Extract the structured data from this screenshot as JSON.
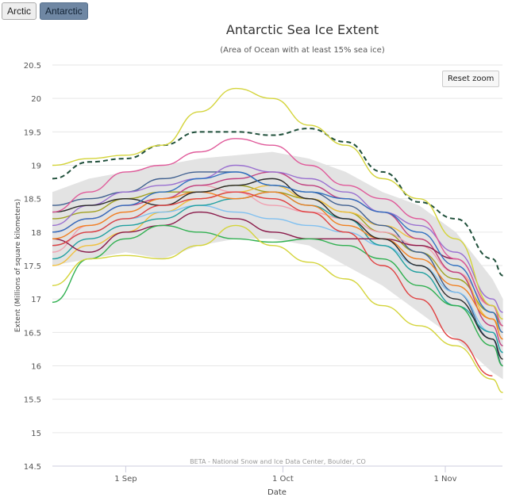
{
  "buttons": {
    "arctic": "Arctic",
    "antarctic": "Antarctic",
    "reset_zoom": "Reset zoom"
  },
  "chart_data": {
    "type": "line",
    "title": "Antarctic Sea Ice Extent",
    "subtitle": "(Area of Ocean with at least 15% sea ice)",
    "xlabel": "Date",
    "ylabel": "Extent (Millions of square kilometers)",
    "credits": "BETA - National Snow and Ice Data Center, Boulder, CO",
    "ylim": [
      14.5,
      20.5
    ],
    "yticks": [
      "20.5",
      "20",
      "19.5",
      "19",
      "18.5",
      "18",
      "17.5",
      "17",
      "16.5",
      "16",
      "15.5",
      "15",
      "14.5"
    ],
    "xticks": [
      {
        "label": "1 Sep",
        "day": 14
      },
      {
        "label": "1 Oct",
        "day": 44
      },
      {
        "label": "1 Nov",
        "day": 75
      }
    ],
    "x_unit": "days since 18 Aug",
    "x": [
      0,
      7,
      14,
      21,
      28,
      35,
      42,
      49,
      56,
      63,
      70,
      77,
      84,
      86
    ],
    "band": {
      "upper": [
        18.6,
        18.8,
        18.9,
        19.0,
        19.1,
        19.15,
        19.2,
        19.1,
        18.9,
        18.6,
        18.4,
        18.0,
        17.3,
        17.0
      ],
      "lower": [
        17.5,
        17.6,
        17.7,
        17.6,
        17.8,
        17.9,
        17.9,
        17.8,
        17.5,
        17.2,
        16.8,
        16.4,
        15.9,
        15.8
      ]
    },
    "series": [
      {
        "color": "#d4d43a",
        "values": [
          19.0,
          19.1,
          19.15,
          19.3,
          19.8,
          20.15,
          20.0,
          19.6,
          19.3,
          18.8,
          18.5,
          17.9,
          16.9,
          16.7
        ]
      },
      {
        "color": "#1f4f3a",
        "dash": true,
        "values": [
          18.8,
          19.05,
          19.1,
          19.3,
          19.5,
          19.5,
          19.45,
          19.55,
          19.35,
          18.9,
          18.45,
          18.2,
          17.6,
          17.35
        ]
      },
      {
        "color": "#d4d43a",
        "values": [
          17.2,
          17.6,
          17.65,
          17.6,
          17.8,
          18.1,
          17.8,
          17.55,
          17.3,
          16.9,
          16.6,
          16.3,
          15.8,
          15.6
        ]
      },
      {
        "color": "#e04040",
        "values": [
          17.8,
          18.0,
          18.2,
          18.4,
          18.5,
          18.6,
          18.5,
          18.3,
          18.0,
          17.5,
          17.0,
          16.4,
          15.85,
          null
        ]
      },
      {
        "color": "#e05a9a",
        "values": [
          18.3,
          18.6,
          18.9,
          19.0,
          19.2,
          19.4,
          19.3,
          19.0,
          18.7,
          18.5,
          18.2,
          17.6,
          16.9,
          16.6
        ]
      },
      {
        "color": "#3070c0",
        "values": [
          18.0,
          18.2,
          18.4,
          18.6,
          18.8,
          18.9,
          18.7,
          18.6,
          18.5,
          18.3,
          18.0,
          17.5,
          16.8,
          16.5
        ]
      },
      {
        "color": "#2a2a2a",
        "values": [
          18.3,
          18.4,
          18.5,
          18.4,
          18.6,
          18.7,
          18.8,
          18.5,
          18.2,
          17.9,
          17.5,
          17.0,
          16.4,
          16.1
        ]
      },
      {
        "color": "#f08020",
        "values": [
          17.9,
          18.1,
          18.3,
          18.5,
          18.6,
          18.5,
          18.6,
          18.4,
          18.1,
          17.9,
          17.6,
          17.2,
          16.7,
          16.4
        ]
      },
      {
        "color": "#30b050",
        "values": [
          16.95,
          17.6,
          17.9,
          18.1,
          18.0,
          17.9,
          17.85,
          17.9,
          17.8,
          17.6,
          17.2,
          16.9,
          16.3,
          16.0
        ]
      },
      {
        "color": "#8a1a4a",
        "values": [
          17.9,
          17.7,
          18.0,
          18.1,
          18.3,
          18.2,
          18.0,
          17.9,
          17.9,
          17.9,
          17.8,
          17.6,
          16.9,
          16.6
        ]
      },
      {
        "color": "#9a70d0",
        "values": [
          18.1,
          18.4,
          18.6,
          18.7,
          18.8,
          19.0,
          18.9,
          18.8,
          18.6,
          18.3,
          18.1,
          17.7,
          17.0,
          16.8
        ]
      },
      {
        "color": "#20a0a0",
        "values": [
          17.6,
          17.9,
          18.1,
          18.2,
          18.4,
          18.5,
          18.6,
          18.4,
          18.2,
          17.8,
          17.4,
          16.9,
          16.5,
          16.2
        ]
      },
      {
        "color": "#c04080",
        "values": [
          18.0,
          18.2,
          18.4,
          18.5,
          18.7,
          18.8,
          18.9,
          18.7,
          18.5,
          18.3,
          17.9,
          17.4,
          16.6,
          16.3
        ]
      },
      {
        "color": "#80c0f0",
        "values": [
          17.8,
          18.0,
          18.2,
          18.3,
          18.4,
          18.3,
          18.2,
          18.1,
          18.0,
          17.8,
          17.5,
          17.1,
          16.5,
          16.2
        ]
      },
      {
        "color": "#f0a0b0",
        "values": [
          17.7,
          18.1,
          18.3,
          18.5,
          18.7,
          18.6,
          18.4,
          18.3,
          18.2,
          18.0,
          17.8,
          17.4,
          16.9,
          16.7
        ]
      },
      {
        "color": "#406090",
        "values": [
          18.4,
          18.5,
          18.6,
          18.8,
          18.9,
          18.9,
          18.7,
          18.6,
          18.4,
          18.1,
          17.7,
          17.1,
          16.4,
          16.0
        ]
      },
      {
        "color": "#f0c040",
        "values": [
          17.5,
          17.8,
          18.0,
          18.3,
          18.5,
          18.6,
          18.7,
          18.5,
          18.3,
          18.1,
          17.9,
          17.4,
          16.7,
          16.5
        ]
      },
      {
        "color": "#a0a020",
        "values": [
          18.2,
          18.3,
          18.5,
          18.6,
          18.6,
          18.7,
          18.6,
          18.5,
          18.3,
          18.0,
          17.7,
          17.3,
          16.8,
          16.6
        ]
      }
    ]
  }
}
